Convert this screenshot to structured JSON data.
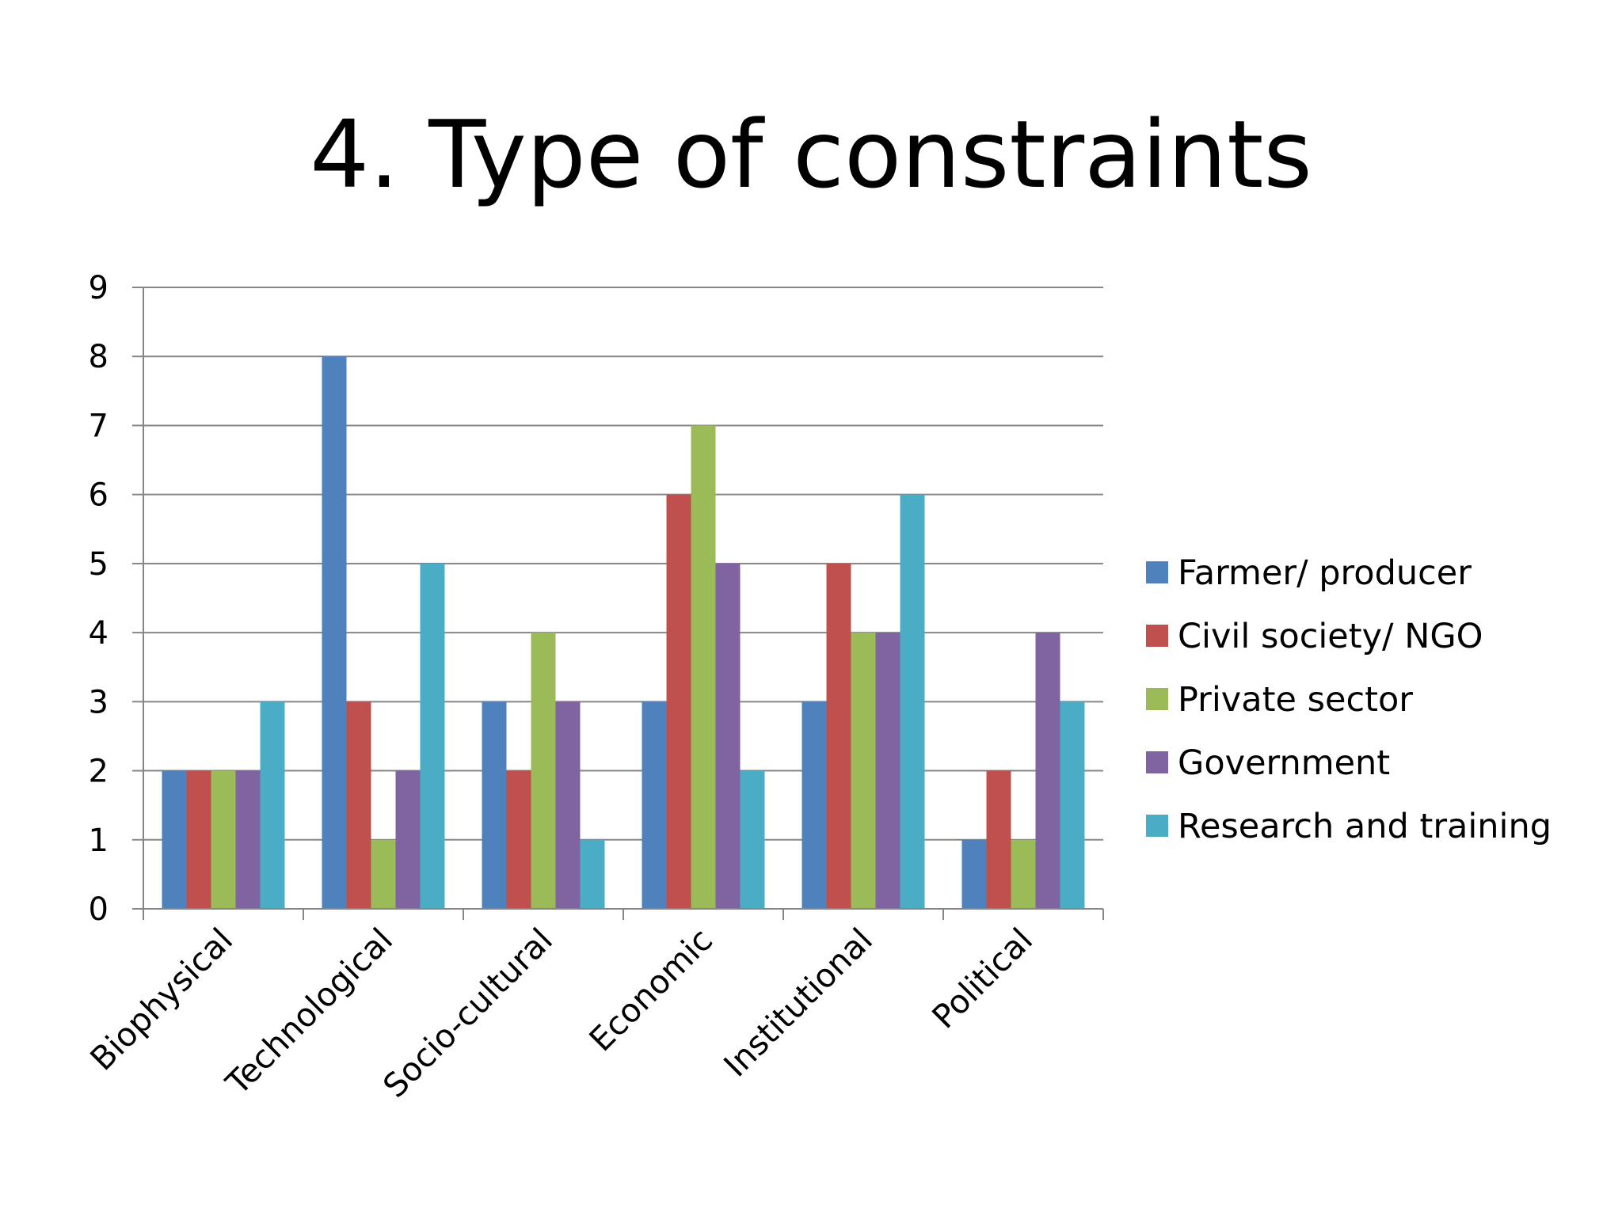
{
  "slide": {
    "title": "4. Type of constraints"
  },
  "chart_data": {
    "type": "bar",
    "title": "",
    "xlabel": "",
    "ylabel": "",
    "categories": [
      "Biophysical",
      "Technological",
      "Socio-cultural",
      "Economic",
      "Institutional",
      "Political"
    ],
    "series": [
      {
        "name": "Farmer/ producer",
        "color": "#4F81BD",
        "values": [
          2,
          8,
          3,
          3,
          3,
          1
        ]
      },
      {
        "name": "Civil society/ NGO",
        "color": "#C0504D",
        "values": [
          2,
          3,
          2,
          6,
          5,
          2
        ]
      },
      {
        "name": "Private sector",
        "color": "#9BBB59",
        "values": [
          2,
          1,
          4,
          7,
          4,
          1
        ]
      },
      {
        "name": "Government",
        "color": "#8064A2",
        "values": [
          2,
          2,
          3,
          5,
          4,
          4
        ]
      },
      {
        "name": "Research and training",
        "color": "#4BACC6",
        "values": [
          3,
          5,
          1,
          2,
          6,
          3
        ]
      }
    ],
    "ylim": [
      0,
      9
    ],
    "yticks": [
      0,
      1,
      2,
      3,
      4,
      5,
      6,
      7,
      8,
      9
    ],
    "grid": true,
    "legend_position": "right"
  }
}
